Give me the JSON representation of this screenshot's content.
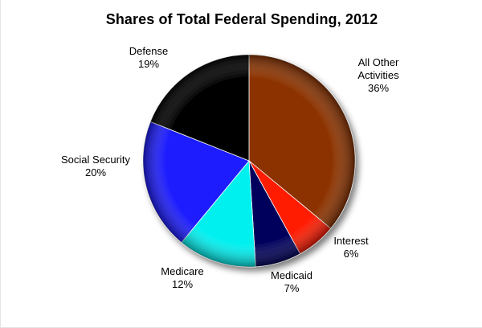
{
  "chart_data": {
    "type": "pie",
    "title": "Shares of Total Federal Spending, 2012",
    "slices": [
      {
        "name": "All Other Activities",
        "label_lines": [
          "All Other",
          "Activities"
        ],
        "value": 36,
        "value_label": "36%",
        "color": "#8c3300"
      },
      {
        "name": "Interest",
        "label_lines": [
          "Interest"
        ],
        "value": 6,
        "value_label": "6%",
        "color": "#ff1a00"
      },
      {
        "name": "Medicaid",
        "label_lines": [
          "Medicaid"
        ],
        "value": 7,
        "value_label": "7%",
        "color": "#00005c"
      },
      {
        "name": "Medicare",
        "label_lines": [
          "Medicare"
        ],
        "value": 12,
        "value_label": "12%",
        "color": "#00f0f0"
      },
      {
        "name": "Social Security",
        "label_lines": [
          "Social Security"
        ],
        "value": 20,
        "value_label": "20%",
        "color": "#1a1aff"
      },
      {
        "name": "Defense",
        "label_lines": [
          "Defense"
        ],
        "value": 19,
        "value_label": "19%",
        "color": "#000000"
      }
    ],
    "start_angle_deg": 0,
    "direction": "clockwise",
    "legend": "none"
  }
}
